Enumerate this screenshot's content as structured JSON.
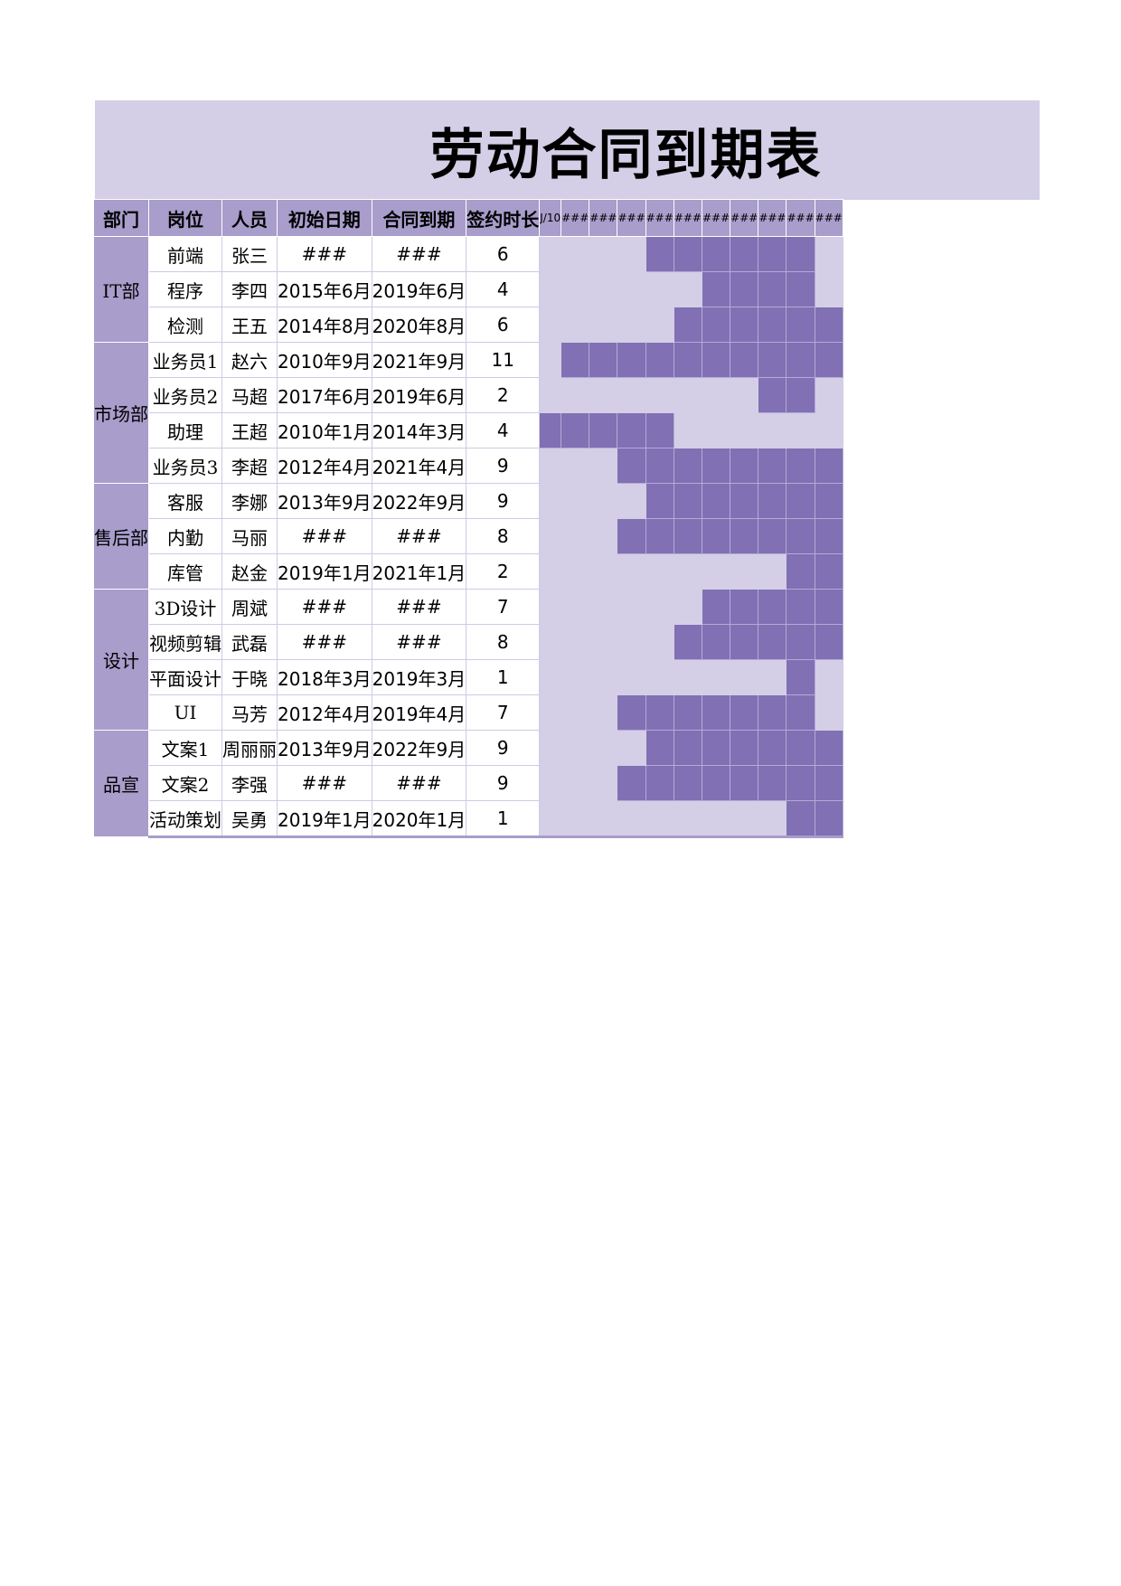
{
  "title": "劳动合同到期表",
  "headers": {
    "dept": "部门",
    "position": "岗位",
    "person": "人员",
    "start": "初始日期",
    "end": "合同到期",
    "duration": "签约时长"
  },
  "month_headers": [
    "J/10",
    "###",
    "###",
    "###",
    "###",
    "###",
    "###",
    "###",
    "###",
    "###",
    "###"
  ],
  "departments": [
    {
      "name": "IT部",
      "rows": [
        {
          "position": "前端",
          "person": "张三",
          "start": "###",
          "end": "###",
          "duration": "6",
          "timeline": [
            0,
            0,
            0,
            0,
            1,
            1,
            1,
            1,
            1,
            1,
            0
          ]
        },
        {
          "position": "程序",
          "person": "李四",
          "start": "2015年6月",
          "end": "2019年6月",
          "duration": "4",
          "timeline": [
            0,
            0,
            0,
            0,
            0,
            0,
            1,
            1,
            1,
            1,
            0
          ]
        },
        {
          "position": "检测",
          "person": "王五",
          "start": "2014年8月",
          "end": "2020年8月",
          "duration": "6",
          "timeline": [
            0,
            0,
            0,
            0,
            0,
            1,
            1,
            1,
            1,
            1,
            1
          ]
        }
      ]
    },
    {
      "name": "市场部",
      "rows": [
        {
          "position": "业务员1",
          "person": "赵六",
          "start": "2010年9月",
          "end": "2021年9月",
          "duration": "11",
          "timeline": [
            0,
            1,
            1,
            1,
            1,
            1,
            1,
            1,
            1,
            1,
            1
          ]
        },
        {
          "position": "业务员2",
          "person": "马超",
          "start": "2017年6月",
          "end": "2019年6月",
          "duration": "2",
          "timeline": [
            0,
            0,
            0,
            0,
            0,
            0,
            0,
            0,
            1,
            1,
            0
          ]
        },
        {
          "position": "助理",
          "person": "王超",
          "start": "2010年1月",
          "end": "2014年3月",
          "duration": "4",
          "timeline": [
            1,
            1,
            1,
            1,
            1,
            0,
            0,
            0,
            0,
            0,
            0
          ]
        },
        {
          "position": "业务员3",
          "person": "李超",
          "start": "2012年4月",
          "end": "2021年4月",
          "duration": "9",
          "timeline": [
            0,
            0,
            0,
            1,
            1,
            1,
            1,
            1,
            1,
            1,
            1
          ]
        }
      ]
    },
    {
      "name": "售后部",
      "rows": [
        {
          "position": "客服",
          "person": "李娜",
          "start": "2013年9月",
          "end": "2022年9月",
          "duration": "9",
          "timeline": [
            0,
            0,
            0,
            0,
            1,
            1,
            1,
            1,
            1,
            1,
            1
          ]
        },
        {
          "position": "内勤",
          "person": "马丽",
          "start": "###",
          "end": "###",
          "duration": "8",
          "timeline": [
            0,
            0,
            0,
            1,
            1,
            1,
            1,
            1,
            1,
            1,
            1
          ]
        },
        {
          "position": "库管",
          "person": "赵金",
          "start": "2019年1月",
          "end": "2021年1月",
          "duration": "2",
          "timeline": [
            0,
            0,
            0,
            0,
            0,
            0,
            0,
            0,
            0,
            1,
            1
          ]
        }
      ]
    },
    {
      "name": "设计",
      "rows": [
        {
          "position": "3D设计",
          "person": "周斌",
          "start": "###",
          "end": "###",
          "duration": "7",
          "timeline": [
            0,
            0,
            0,
            0,
            0,
            0,
            1,
            1,
            1,
            1,
            1
          ]
        },
        {
          "position": "视频剪辑",
          "person": "武磊",
          "start": "###",
          "end": "###",
          "duration": "8",
          "timeline": [
            0,
            0,
            0,
            0,
            0,
            1,
            1,
            1,
            1,
            1,
            1
          ]
        },
        {
          "position": "平面设计",
          "person": "于晓",
          "start": "2018年3月",
          "end": "2019年3月",
          "duration": "1",
          "timeline": [
            0,
            0,
            0,
            0,
            0,
            0,
            0,
            0,
            0,
            1,
            0
          ]
        },
        {
          "position": "UI",
          "person": "马芳",
          "start": "2012年4月",
          "end": "2019年4月",
          "duration": "7",
          "timeline": [
            0,
            0,
            0,
            1,
            1,
            1,
            1,
            1,
            1,
            1,
            0
          ]
        }
      ]
    },
    {
      "name": "品宣",
      "rows": [
        {
          "position": "文案1",
          "person": "周丽丽",
          "start": "2013年9月",
          "end": "2022年9月",
          "duration": "9",
          "timeline": [
            0,
            0,
            0,
            0,
            1,
            1,
            1,
            1,
            1,
            1,
            1
          ]
        },
        {
          "position": "文案2",
          "person": "李强",
          "start": "###",
          "end": "###",
          "duration": "9",
          "timeline": [
            0,
            0,
            0,
            1,
            1,
            1,
            1,
            1,
            1,
            1,
            1
          ]
        },
        {
          "position": "活动策划",
          "person": "吴勇",
          "start": "2019年1月",
          "end": "2020年1月",
          "duration": "1",
          "timeline": [
            0,
            0,
            0,
            0,
            0,
            0,
            0,
            0,
            0,
            1,
            1
          ]
        }
      ]
    }
  ],
  "colors": {
    "header_bg": "#a89dcb",
    "band_bg": "#d4cfe6",
    "bar_fill": "#8170b3"
  }
}
